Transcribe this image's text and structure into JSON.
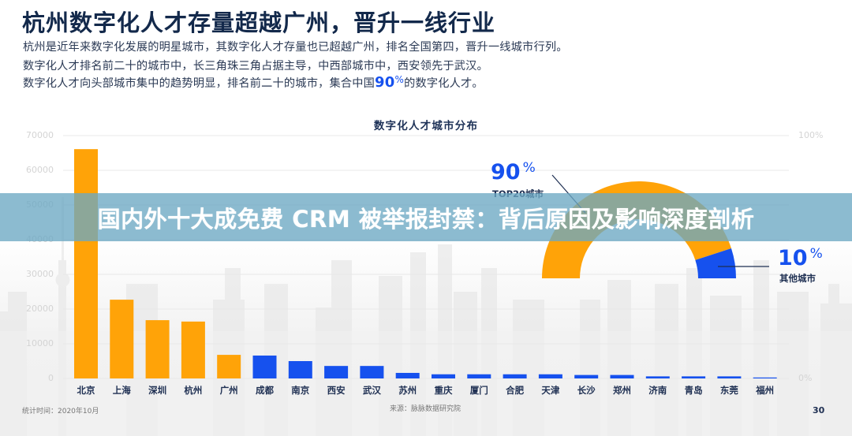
{
  "header": {
    "title": "杭州数字化人才存量超越广州，晋升一线行业",
    "lines": [
      "杭州是近年来数字化发展的明星城市，其数字化人才存量也已超越广州，排名全国第四，晋升一线城市行列。",
      "数字化人才排名前二十的城市中，长三角珠三角占据主导，中西部城市中，西安领先于武汉。"
    ],
    "line3_prefix": "数字化人才向头部城市集中的趋势明显，排名前二十的城市，集合中国",
    "line3_highlight_num": "90",
    "line3_highlight_pct": "%",
    "line3_suffix": "的数字化人才。"
  },
  "banner": {
    "text": "国内外十大成免费 CRM 被举报封禁：背后原因及影响深度剖析"
  },
  "footer": {
    "stat_time": "统计时间：2020年10月",
    "source": "来源：脉脉数据研究院",
    "page_number": "30"
  },
  "colors": {
    "orange": "#ffa308",
    "blue": "#1651ee",
    "navy": "#13294b",
    "banner": "#6ca8c3"
  },
  "chart_data": [
    {
      "type": "bar",
      "title": "数字化人才城市分布",
      "xlabel": "",
      "ylabel": "",
      "ylim": [
        0,
        70000
      ],
      "yticks": [
        "0",
        "10000",
        "20000",
        "30000",
        "40000",
        "50000",
        "60000",
        "70000"
      ],
      "y2ticks": [
        "0%",
        "100%"
      ],
      "grid": true,
      "categories": [
        "北京",
        "上海",
        "深圳",
        "杭州",
        "广州",
        "成都",
        "南京",
        "西安",
        "武汉",
        "苏州",
        "重庆",
        "厦门",
        "合肥",
        "天津",
        "长沙",
        "郑州",
        "济南",
        "青岛",
        "东莞",
        "福州"
      ],
      "values": [
        66100,
        22700,
        16800,
        16400,
        6800,
        6600,
        5000,
        3600,
        3600,
        1600,
        1200,
        1200,
        1200,
        1200,
        1000,
        1000,
        600,
        600,
        600,
        200
      ],
      "bar_colors": [
        "#ffa308",
        "#ffa308",
        "#ffa308",
        "#ffa308",
        "#ffa308",
        "#1651ee",
        "#1651ee",
        "#1651ee",
        "#1651ee",
        "#1651ee",
        "#1651ee",
        "#1651ee",
        "#1651ee",
        "#1651ee",
        "#1651ee",
        "#1651ee",
        "#1651ee",
        "#1651ee",
        "#1651ee",
        "#1651ee"
      ]
    },
    {
      "type": "pie",
      "subtype": "half-donut gauge",
      "labels": [
        "TOP20城市",
        "其他城市"
      ],
      "values": [
        90,
        10
      ],
      "colors": [
        "#ffa308",
        "#1651ee"
      ],
      "annotations": [
        {
          "value": "90",
          "unit": "%",
          "label": "TOP20城市"
        },
        {
          "value": "10",
          "unit": "%",
          "label": "其他城市"
        }
      ]
    }
  ]
}
